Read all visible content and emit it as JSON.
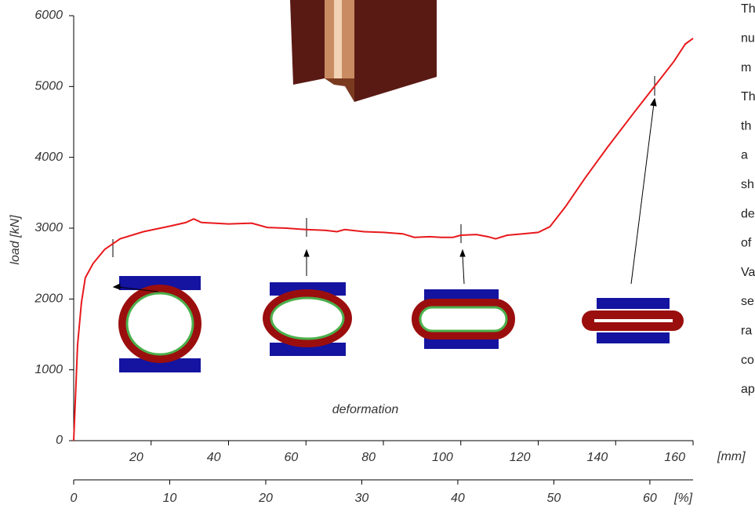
{
  "chart_data": {
    "type": "line",
    "ylabel": "load [kN]",
    "annotation": "deformation",
    "x_unit": "[mm]",
    "x2_unit": "[%]",
    "xlim": [
      0,
      160
    ],
    "xticks": [
      20,
      40,
      60,
      80,
      100,
      120,
      140,
      160
    ],
    "x2lim": [
      0,
      64.5
    ],
    "x2ticks": [
      0,
      10,
      20,
      30,
      40,
      50,
      60
    ],
    "ylim": [
      0,
      6000
    ],
    "yticks": [
      0,
      1000,
      2000,
      3000,
      4000,
      5000,
      6000
    ],
    "series": [
      {
        "color": "#e8191c",
        "x": [
          0,
          1,
          2,
          3,
          5,
          8,
          12,
          18,
          25,
          29,
          31,
          33,
          40,
          46,
          50,
          55,
          60,
          65,
          68,
          70,
          75,
          80,
          85,
          88,
          92,
          95,
          98,
          100,
          104,
          107,
          109,
          112,
          116,
          120,
          123,
          127,
          132,
          138,
          145,
          150,
          155,
          158,
          160
        ],
        "values": [
          0,
          1350,
          1950,
          2300,
          2500,
          2700,
          2850,
          2950,
          3030,
          3080,
          3130,
          3080,
          3060,
          3070,
          3010,
          3000,
          2980,
          2970,
          2950,
          2980,
          2950,
          2940,
          2920,
          2870,
          2880,
          2870,
          2870,
          2900,
          2910,
          2880,
          2850,
          2900,
          2920,
          2940,
          3020,
          3300,
          3700,
          4150,
          4650,
          5000,
          5350,
          5600,
          5680
        ]
      }
    ],
    "side_text": [
      "Th",
      "nu",
      "m",
      "Th",
      "th",
      "a",
      "sh",
      "de",
      "of",
      "Va",
      "se",
      "ra",
      "co",
      "ap"
    ]
  }
}
